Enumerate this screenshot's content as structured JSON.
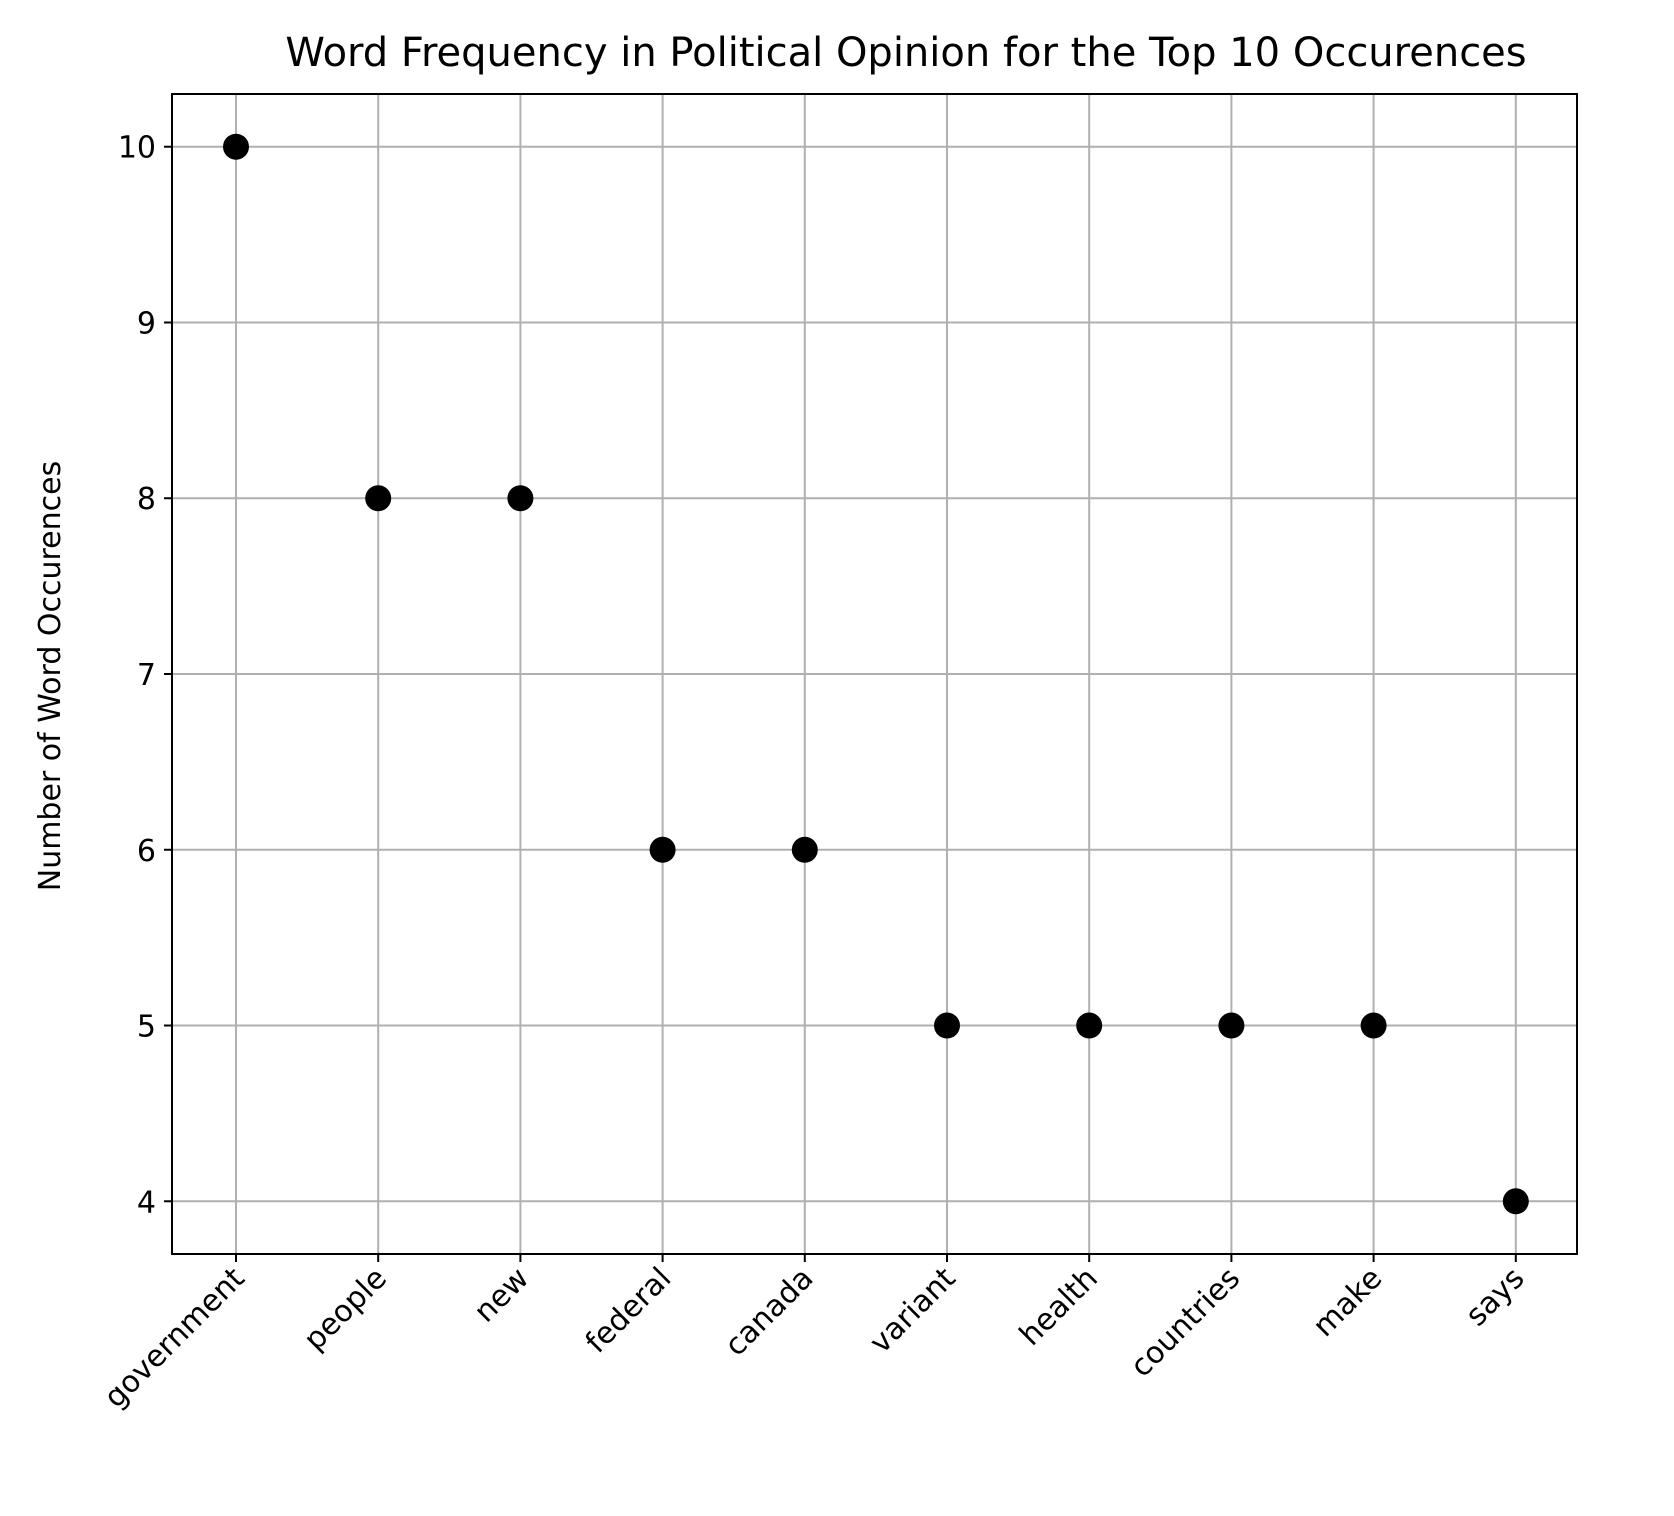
{
  "chart_data": {
    "type": "scatter",
    "title": "Word Frequency in Political Opinion for the Top 10 Occurences",
    "xlabel": "",
    "ylabel": "Number of Word Occurences",
    "categories": [
      "government",
      "people",
      "new",
      "federal",
      "canada",
      "variant",
      "health",
      "countries",
      "make",
      "says"
    ],
    "values": [
      10,
      8,
      8,
      6,
      6,
      5,
      5,
      5,
      5,
      4
    ],
    "yticks": [
      4,
      5,
      6,
      7,
      8,
      9,
      10
    ],
    "ylim": [
      3.7,
      10.3
    ],
    "grid": true,
    "x_tick_rotation_deg": 45,
    "marker_color": "#000000",
    "grid_color": "#b0b0b0"
  }
}
